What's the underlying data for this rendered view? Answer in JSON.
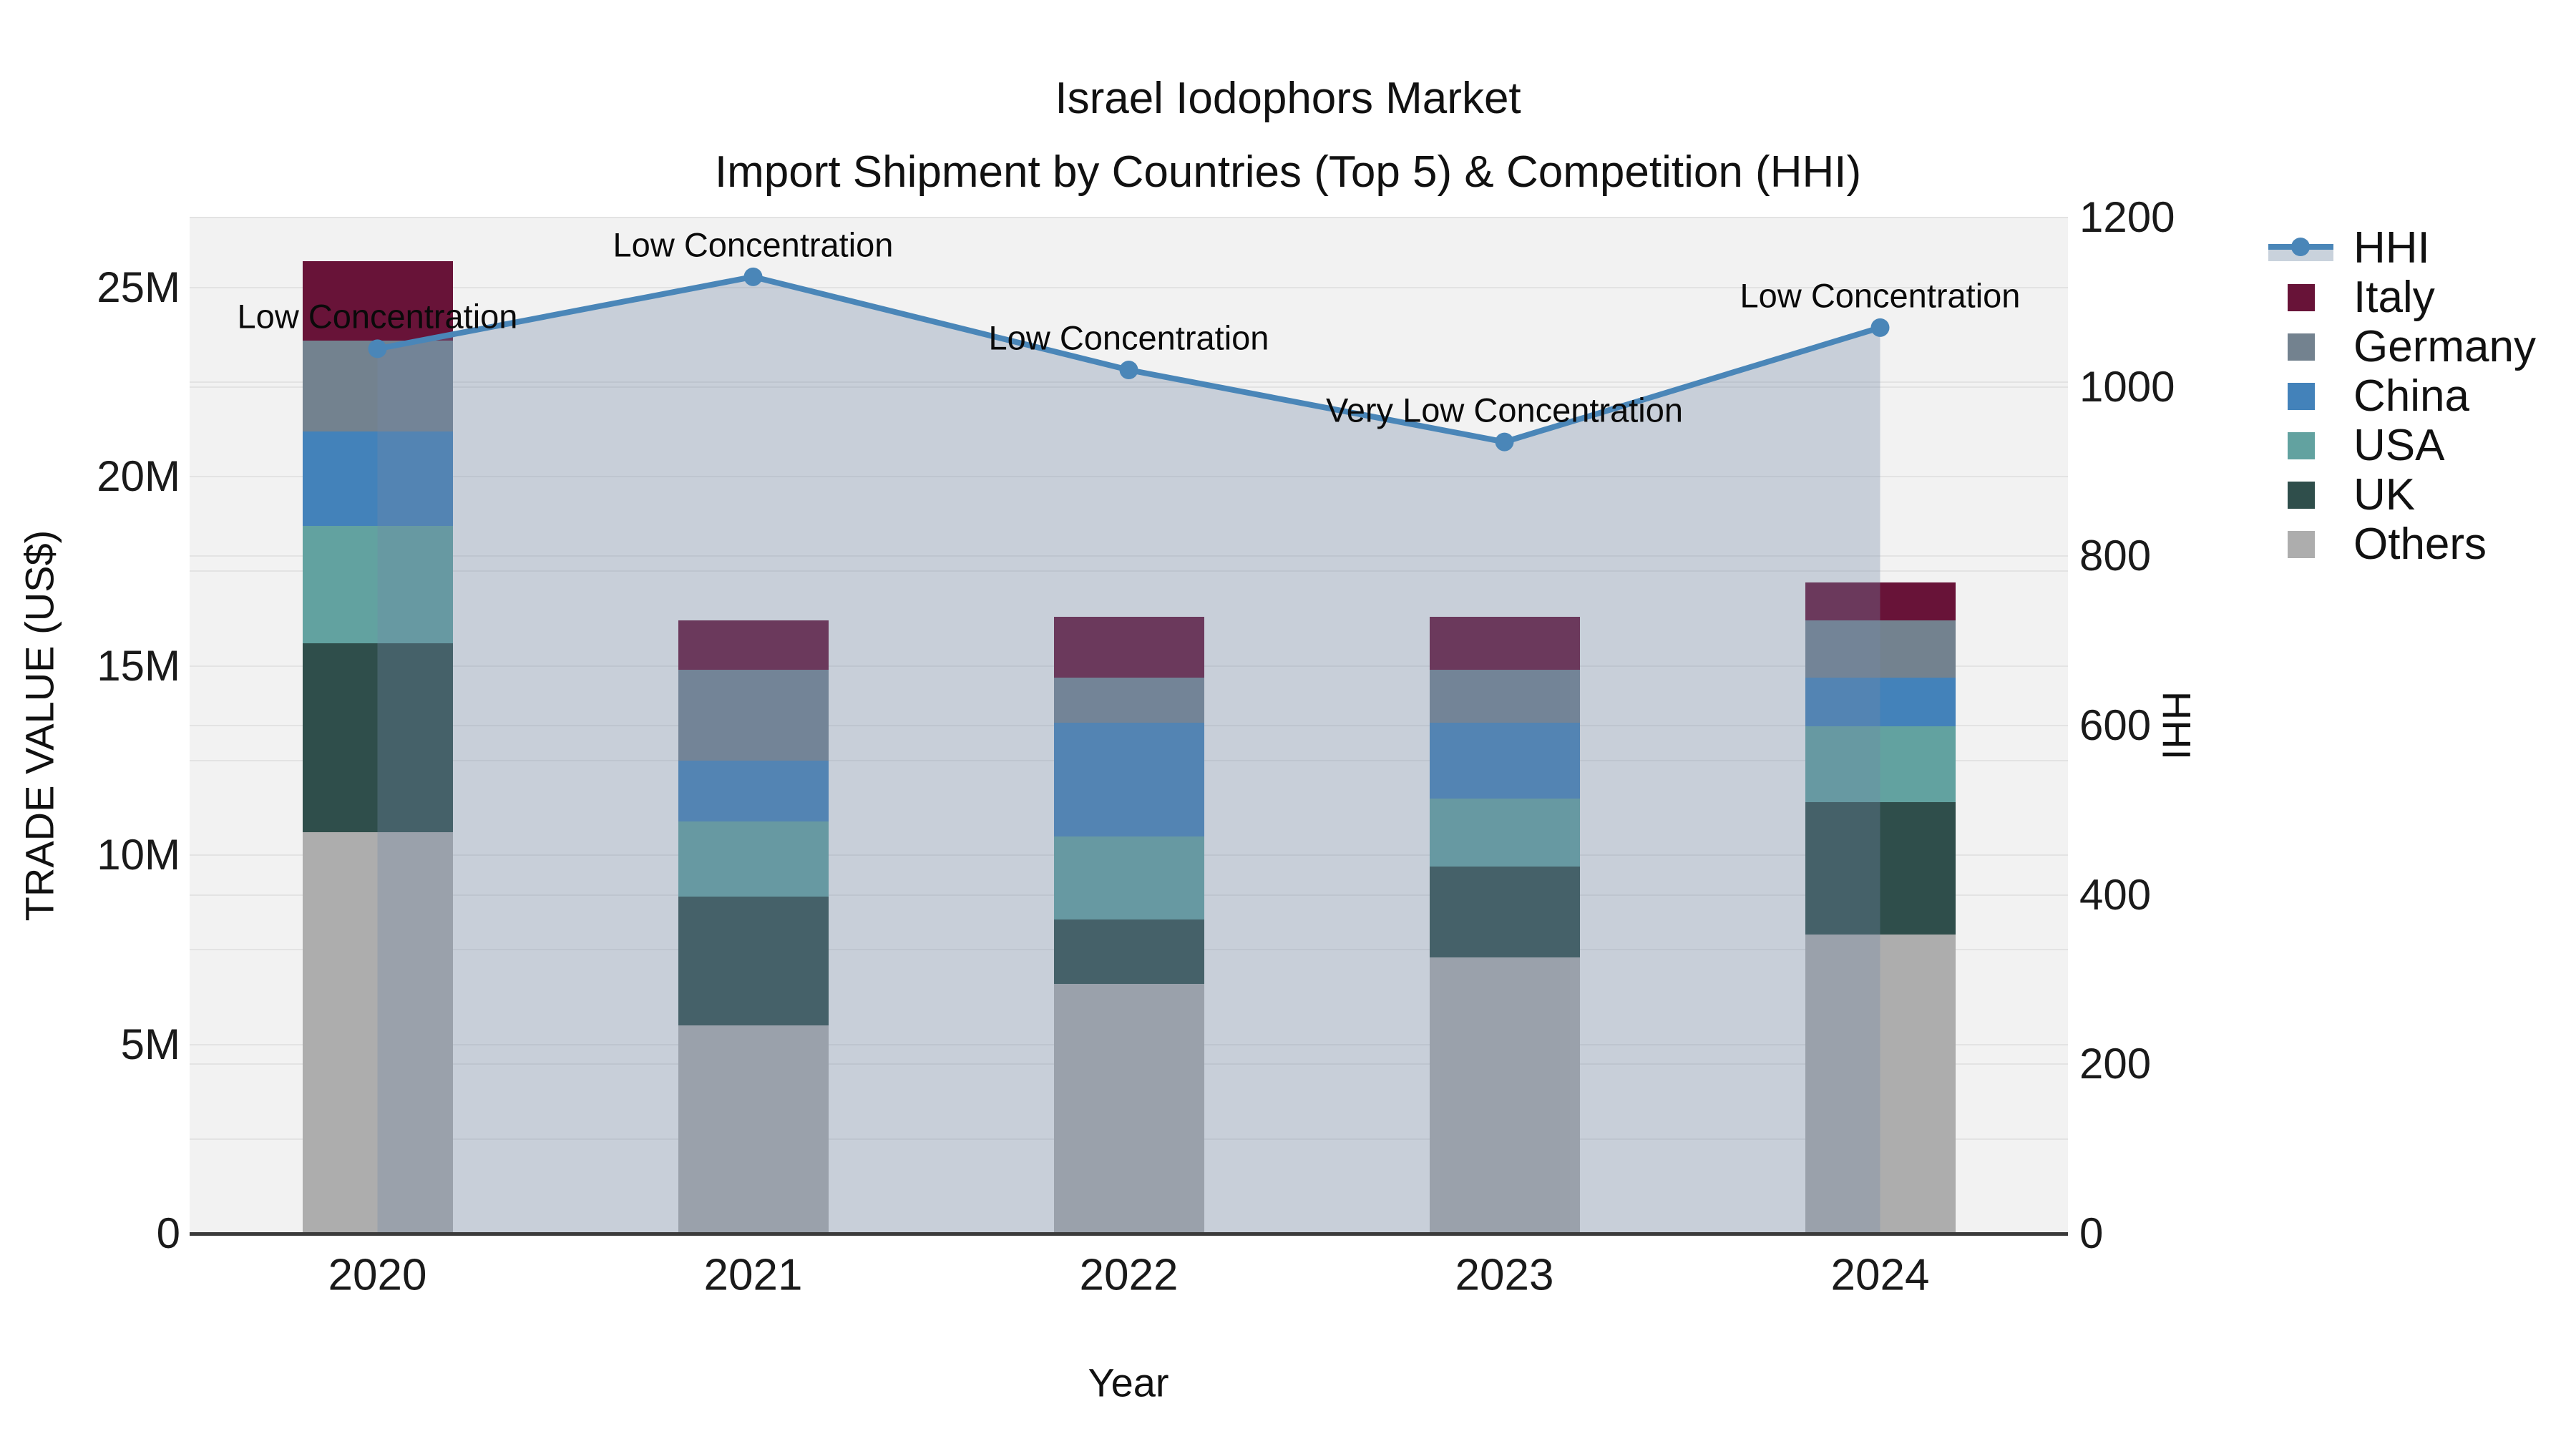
{
  "title": {
    "line1": "Israel Iodophors Market",
    "line2": "Import Shipment by Countries (Top 5) & Competition (HHI)"
  },
  "axes": {
    "x": {
      "label": "Year",
      "categories": [
        "2020",
        "2021",
        "2022",
        "2023",
        "2024"
      ]
    },
    "y_left": {
      "label": "TRADE VALUE (US$)",
      "range": [
        0,
        26.85
      ],
      "ticks": [
        {
          "value": 0,
          "label": "0"
        },
        {
          "value": 5,
          "label": "5M"
        },
        {
          "value": 10,
          "label": "10M"
        },
        {
          "value": 15,
          "label": "15M"
        },
        {
          "value": 20,
          "label": "20M"
        },
        {
          "value": 25,
          "label": "25M"
        }
      ],
      "minor_grid_step": 2.5,
      "minor_grid_max": 25
    },
    "y_right": {
      "label": "HHI",
      "range": [
        0,
        1200
      ],
      "ticks": [
        {
          "value": 0,
          "label": "0"
        },
        {
          "value": 200,
          "label": "200"
        },
        {
          "value": 400,
          "label": "400"
        },
        {
          "value": 600,
          "label": "600"
        },
        {
          "value": 800,
          "label": "800"
        },
        {
          "value": 1000,
          "label": "1000"
        },
        {
          "value": 1200,
          "label": "1200"
        }
      ],
      "grid_step": 200
    }
  },
  "legend": [
    {
      "label": "HHI",
      "type": "line",
      "color": "#4a86b8"
    },
    {
      "label": "Italy",
      "type": "swatch",
      "color": "#681338"
    },
    {
      "label": "Germany",
      "type": "swatch",
      "color": "#73828f"
    },
    {
      "label": "China",
      "type": "swatch",
      "color": "#4382ba"
    },
    {
      "label": "USA",
      "type": "swatch",
      "color": "#62a2a0"
    },
    {
      "label": "UK",
      "type": "swatch",
      "color": "#2f4e4b"
    },
    {
      "label": "Others",
      "type": "swatch",
      "color": "#adadad"
    }
  ],
  "chart_data": {
    "type": "combo: stacked bar (left axis) + line with area fill (right axis)",
    "title": "Israel Iodophors Market — Import Shipment by Countries (Top 5) & Competition (HHI)",
    "xlabel": "Year",
    "ylabel_left": "TRADE VALUE (US$)",
    "ylabel_right": "HHI",
    "categories": [
      "2020",
      "2021",
      "2022",
      "2023",
      "2024"
    ],
    "bar_unit": "million US$",
    "stack_order_bottom_to_top": [
      "Others",
      "UK",
      "USA",
      "China",
      "Germany",
      "Italy"
    ],
    "series": [
      {
        "name": "Others",
        "color": "#adadad",
        "values": [
          10.6,
          5.5,
          6.6,
          7.3,
          7.9
        ]
      },
      {
        "name": "UK",
        "color": "#2f4e4b",
        "values": [
          5.0,
          3.4,
          1.7,
          2.4,
          3.5
        ]
      },
      {
        "name": "USA",
        "color": "#62a2a0",
        "values": [
          3.1,
          2.0,
          2.2,
          1.8,
          2.0
        ]
      },
      {
        "name": "China",
        "color": "#4382ba",
        "values": [
          2.5,
          1.6,
          3.0,
          2.0,
          1.3
        ]
      },
      {
        "name": "Germany",
        "color": "#73828f",
        "values": [
          2.4,
          2.4,
          1.2,
          1.4,
          1.5
        ]
      },
      {
        "name": "Italy",
        "color": "#681338",
        "values": [
          2.1,
          1.3,
          1.6,
          1.4,
          1.0
        ]
      }
    ],
    "bar_totals": [
      25.7,
      16.2,
      16.3,
      16.3,
      17.2
    ],
    "hhi": {
      "name": "HHI",
      "axis": "right",
      "line_color": "#4a86b8",
      "fill_color": "rgba(116,138,168,0.33)",
      "values": [
        1045,
        1130,
        1020,
        935,
        1070
      ]
    },
    "annotations": [
      {
        "year": "2020",
        "text": "Low Concentration"
      },
      {
        "year": "2021",
        "text": "Low Concentration"
      },
      {
        "year": "2022",
        "text": "Low Concentration"
      },
      {
        "year": "2023",
        "text": "Very Low Concentration"
      },
      {
        "year": "2024",
        "text": "Low Concentration"
      }
    ],
    "layout_hints": {
      "plot_background": "#f2f2f2",
      "gridlines": "#e3e3e3",
      "axis_line": "#3b3b3b",
      "legend_position": "right",
      "grid": "on"
    }
  }
}
